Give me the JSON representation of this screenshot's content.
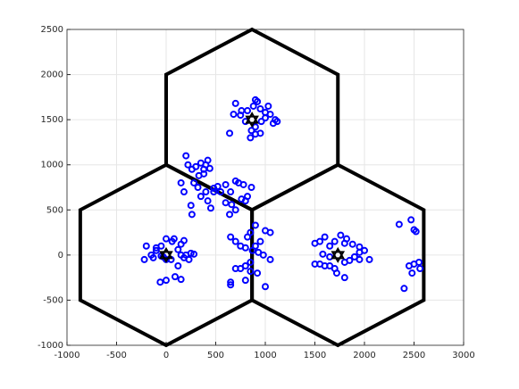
{
  "chart_data": {
    "type": "scatter",
    "xlim": [
      -1000,
      3000
    ],
    "xticks": [
      -1000,
      -500,
      0,
      500,
      1000,
      1500,
      2000,
      2500,
      3000
    ],
    "ylim": [
      -1000,
      2500
    ],
    "yticks": [
      -1000,
      -500,
      0,
      500,
      1000,
      1500,
      2000,
      2500
    ],
    "grid": true,
    "cells": {
      "color": "#000000",
      "polygons": [
        {
          "x": [
            0,
            866,
            866,
            0,
            -866,
            -866
          ],
          "y": [
            1000,
            500,
            -500,
            -1000,
            -500,
            500
          ]
        },
        {
          "x": [
            1732,
            2598,
            2598,
            1732,
            866,
            866
          ],
          "y": [
            1000,
            500,
            -500,
            -1000,
            -500,
            500
          ]
        },
        {
          "x": [
            866,
            1732,
            1732,
            866,
            0,
            0
          ],
          "y": [
            2500,
            2000,
            1000,
            500,
            1000,
            2000
          ]
        }
      ]
    },
    "series": [
      {
        "color": "#0000ff",
        "marker": "circle",
        "x": [
          700,
          760,
          820,
          900,
          920,
          880,
          950,
          1000,
          1050,
          1100,
          1080,
          1000,
          960,
          900,
          860,
          850,
          900,
          950,
          800,
          750,
          680,
          640,
          1030,
          1120,
          200,
          220,
          260,
          300,
          350,
          380,
          400,
          440,
          420,
          380,
          330,
          150,
          180,
          280,
          320,
          350,
          400,
          420,
          450,
          480,
          520,
          550,
          600,
          650,
          700,
          730,
          780,
          820,
          860,
          760,
          800,
          700,
          640,
          600,
          660,
          480,
          260,
          250,
          -200,
          -150,
          -220,
          -100,
          -50,
          -130,
          0,
          60,
          80,
          150,
          120,
          180,
          50,
          -30,
          0,
          150,
          180,
          200,
          250,
          280,
          230,
          120,
          0,
          -60,
          90,
          150,
          -100,
          -50,
          650,
          700,
          750,
          800,
          820,
          850,
          900,
          1000,
          1050,
          950,
          900,
          870,
          930,
          980,
          1050,
          850,
          800,
          750,
          850,
          920,
          800,
          650,
          650,
          1000,
          700,
          1500,
          1550,
          1600,
          1700,
          1800,
          1650,
          1760,
          1820,
          1880,
          1950,
          2000,
          1900,
          2050,
          1950,
          1850,
          1800,
          1650,
          1700,
          1720,
          1800,
          1600,
          1550,
          1500,
          1580,
          1650,
          1950,
          2350,
          2470,
          2500,
          2520,
          2450,
          2500,
          2550,
          2560,
          2480,
          2400
        ],
        "values": [
          1680,
          1600,
          1600,
          1720,
          1700,
          1650,
          1620,
          1580,
          1560,
          1500,
          1460,
          1520,
          1480,
          1420,
          1380,
          1300,
          1340,
          1350,
          1480,
          1550,
          1560,
          1350,
          1650,
          1480,
          1100,
          1000,
          950,
          980,
          1020,
          900,
          1000,
          960,
          1050,
          950,
          880,
          800,
          700,
          800,
          750,
          650,
          700,
          600,
          520,
          740,
          760,
          700,
          780,
          700,
          820,
          800,
          780,
          650,
          750,
          620,
          600,
          500,
          450,
          580,
          560,
          700,
          450,
          550,
          100,
          0,
          -50,
          80,
          100,
          -30,
          180,
          150,
          180,
          120,
          60,
          160,
          -50,
          -20,
          -50,
          0,
          -30,
          0,
          20,
          10,
          -50,
          -120,
          -280,
          -300,
          -240,
          -270,
          50,
          -10,
          200,
          150,
          100,
          80,
          200,
          250,
          330,
          270,
          250,
          150,
          100,
          50,
          30,
          0,
          -50,
          -80,
          -120,
          -150,
          -180,
          -200,
          -280,
          -300,
          -330,
          -350,
          -150,
          130,
          150,
          200,
          150,
          130,
          100,
          220,
          180,
          120,
          90,
          50,
          -20,
          -50,
          -50,
          -60,
          -80,
          -120,
          -150,
          -200,
          -250,
          -120,
          -100,
          -100,
          10,
          -20,
          30,
          340,
          390,
          280,
          260,
          -120,
          -100,
          -80,
          -150,
          -200,
          -370
        ]
      },
      {
        "color": "#000000",
        "marker": "hexagram",
        "x": [
          0,
          1732,
          866
        ],
        "values": [
          0,
          0,
          1500
        ]
      }
    ]
  }
}
